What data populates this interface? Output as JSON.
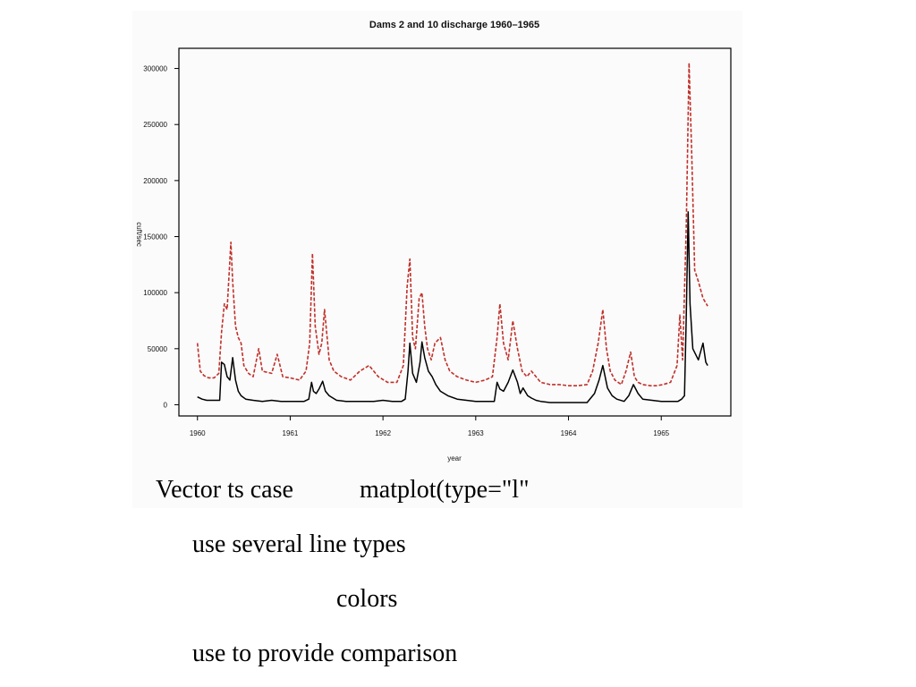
{
  "chart_data": {
    "type": "line",
    "title": "Dams 2 and 10 discharge 1960–1965",
    "xlabel": "year",
    "ylabel": "cuft/sec",
    "xlim": [
      1959.8,
      1965.75
    ],
    "ylim": [
      -10000,
      318000
    ],
    "x_ticks": [
      1960,
      1961,
      1962,
      1963,
      1964,
      1965
    ],
    "x_tick_labels": [
      "1960",
      "1961",
      "1962",
      "1963",
      "1964",
      "1965"
    ],
    "y_ticks": [
      0,
      50000,
      100000,
      150000,
      200000,
      250000,
      300000
    ],
    "y_tick_labels": [
      "0",
      "50000",
      "100000",
      "150000",
      "200000",
      "250000",
      "300000"
    ],
    "grid": false,
    "series": [
      {
        "color": "#000000",
        "dash": "solid",
        "x": [
          1960.0,
          1960.05,
          1960.1,
          1960.15,
          1960.2,
          1960.24,
          1960.26,
          1960.29,
          1960.32,
          1960.35,
          1960.38,
          1960.41,
          1960.44,
          1960.47,
          1960.52,
          1960.6,
          1960.7,
          1960.8,
          1960.9,
          1961.0,
          1961.1,
          1961.15,
          1961.2,
          1961.23,
          1961.25,
          1961.28,
          1961.31,
          1961.35,
          1961.38,
          1961.42,
          1961.5,
          1961.6,
          1961.7,
          1961.8,
          1961.9,
          1962.0,
          1962.1,
          1962.2,
          1962.24,
          1962.27,
          1962.29,
          1962.32,
          1962.36,
          1962.4,
          1962.42,
          1962.45,
          1962.49,
          1962.53,
          1962.57,
          1962.62,
          1962.7,
          1962.8,
          1962.9,
          1963.0,
          1963.1,
          1963.2,
          1963.23,
          1963.26,
          1963.3,
          1963.35,
          1963.4,
          1963.45,
          1963.48,
          1963.51,
          1963.56,
          1963.6,
          1963.65,
          1963.7,
          1963.8,
          1963.9,
          1964.0,
          1964.1,
          1964.2,
          1964.28,
          1964.33,
          1964.37,
          1964.42,
          1964.47,
          1964.52,
          1964.6,
          1964.65,
          1964.7,
          1964.75,
          1964.8,
          1964.9,
          1965.0,
          1965.1,
          1965.18,
          1965.22,
          1965.25,
          1965.27,
          1965.29,
          1965.31,
          1965.34,
          1965.37,
          1965.4,
          1965.45,
          1965.48,
          1965.5
        ],
        "y": [
          7000,
          5000,
          4000,
          4000,
          4000,
          4000,
          38000,
          36000,
          25000,
          22000,
          42000,
          22000,
          12000,
          8000,
          5000,
          4000,
          3000,
          4000,
          3000,
          3000,
          3000,
          3000,
          5000,
          20000,
          12000,
          10000,
          14000,
          21000,
          12000,
          8000,
          4000,
          3000,
          3000,
          3000,
          3000,
          4000,
          3000,
          3000,
          5000,
          30000,
          55000,
          28000,
          20000,
          38000,
          56000,
          42000,
          30000,
          25000,
          18000,
          12000,
          8000,
          5000,
          4000,
          3000,
          3000,
          3000,
          20000,
          14000,
          12000,
          20000,
          31000,
          20000,
          10000,
          15000,
          8000,
          6000,
          4000,
          3000,
          2000,
          2000,
          2000,
          2000,
          2000,
          10000,
          22000,
          35000,
          15000,
          8000,
          5000,
          3000,
          8000,
          18000,
          10000,
          5000,
          4000,
          3000,
          3000,
          3000,
          5000,
          8000,
          80000,
          172000,
          90000,
          50000,
          45000,
          40000,
          55000,
          38000,
          35000
        ]
      },
      {
        "color": "#c0302a",
        "dash": "dashed",
        "x": [
          1960.0,
          1960.03,
          1960.07,
          1960.12,
          1960.18,
          1960.23,
          1960.26,
          1960.29,
          1960.32,
          1960.36,
          1960.38,
          1960.41,
          1960.44,
          1960.47,
          1960.5,
          1960.55,
          1960.6,
          1960.66,
          1960.7,
          1960.8,
          1960.86,
          1960.92,
          1961.0,
          1961.1,
          1961.17,
          1961.21,
          1961.24,
          1961.27,
          1961.31,
          1961.34,
          1961.37,
          1961.42,
          1961.47,
          1961.55,
          1961.65,
          1961.75,
          1961.85,
          1961.95,
          1962.05,
          1962.15,
          1962.22,
          1962.26,
          1962.29,
          1962.32,
          1962.35,
          1962.39,
          1962.42,
          1962.45,
          1962.48,
          1962.52,
          1962.56,
          1962.62,
          1962.67,
          1962.72,
          1962.8,
          1962.9,
          1963.0,
          1963.1,
          1963.18,
          1963.23,
          1963.26,
          1963.3,
          1963.35,
          1963.4,
          1963.45,
          1963.5,
          1963.55,
          1963.6,
          1963.7,
          1963.8,
          1963.9,
          1964.0,
          1964.1,
          1964.2,
          1964.26,
          1964.32,
          1964.37,
          1964.41,
          1964.45,
          1964.5,
          1964.57,
          1964.62,
          1964.67,
          1964.71,
          1964.75,
          1964.8,
          1964.88,
          1964.95,
          1965.02,
          1965.1,
          1965.17,
          1965.2,
          1965.23,
          1965.27,
          1965.3,
          1965.33,
          1965.36,
          1965.4,
          1965.45,
          1965.5
        ],
        "y": [
          55000,
          30000,
          26000,
          24000,
          24000,
          28000,
          65000,
          90000,
          85000,
          145000,
          110000,
          70000,
          60000,
          55000,
          35000,
          28000,
          25000,
          50000,
          30000,
          28000,
          45000,
          25000,
          24000,
          22000,
          30000,
          55000,
          135000,
          70000,
          45000,
          55000,
          85000,
          40000,
          30000,
          25000,
          22000,
          30000,
          35000,
          25000,
          20000,
          20000,
          35000,
          105000,
          130000,
          60000,
          50000,
          95000,
          100000,
          70000,
          50000,
          40000,
          55000,
          60000,
          40000,
          30000,
          25000,
          22000,
          20000,
          22000,
          25000,
          60000,
          90000,
          55000,
          40000,
          75000,
          50000,
          30000,
          25000,
          30000,
          20000,
          18000,
          18000,
          17000,
          17000,
          18000,
          30000,
          55000,
          85000,
          50000,
          30000,
          22000,
          18000,
          30000,
          47000,
          25000,
          20000,
          18000,
          17000,
          17000,
          18000,
          20000,
          35000,
          80000,
          40000,
          160000,
          305000,
          220000,
          120000,
          110000,
          95000,
          88000
        ]
      }
    ]
  },
  "caption": {
    "line1_a": "Vector ts case",
    "line1_b": "matplot(type=\"l\"",
    "line2": "use several line types",
    "line3": "colors",
    "line4": "use to provide comparison"
  }
}
